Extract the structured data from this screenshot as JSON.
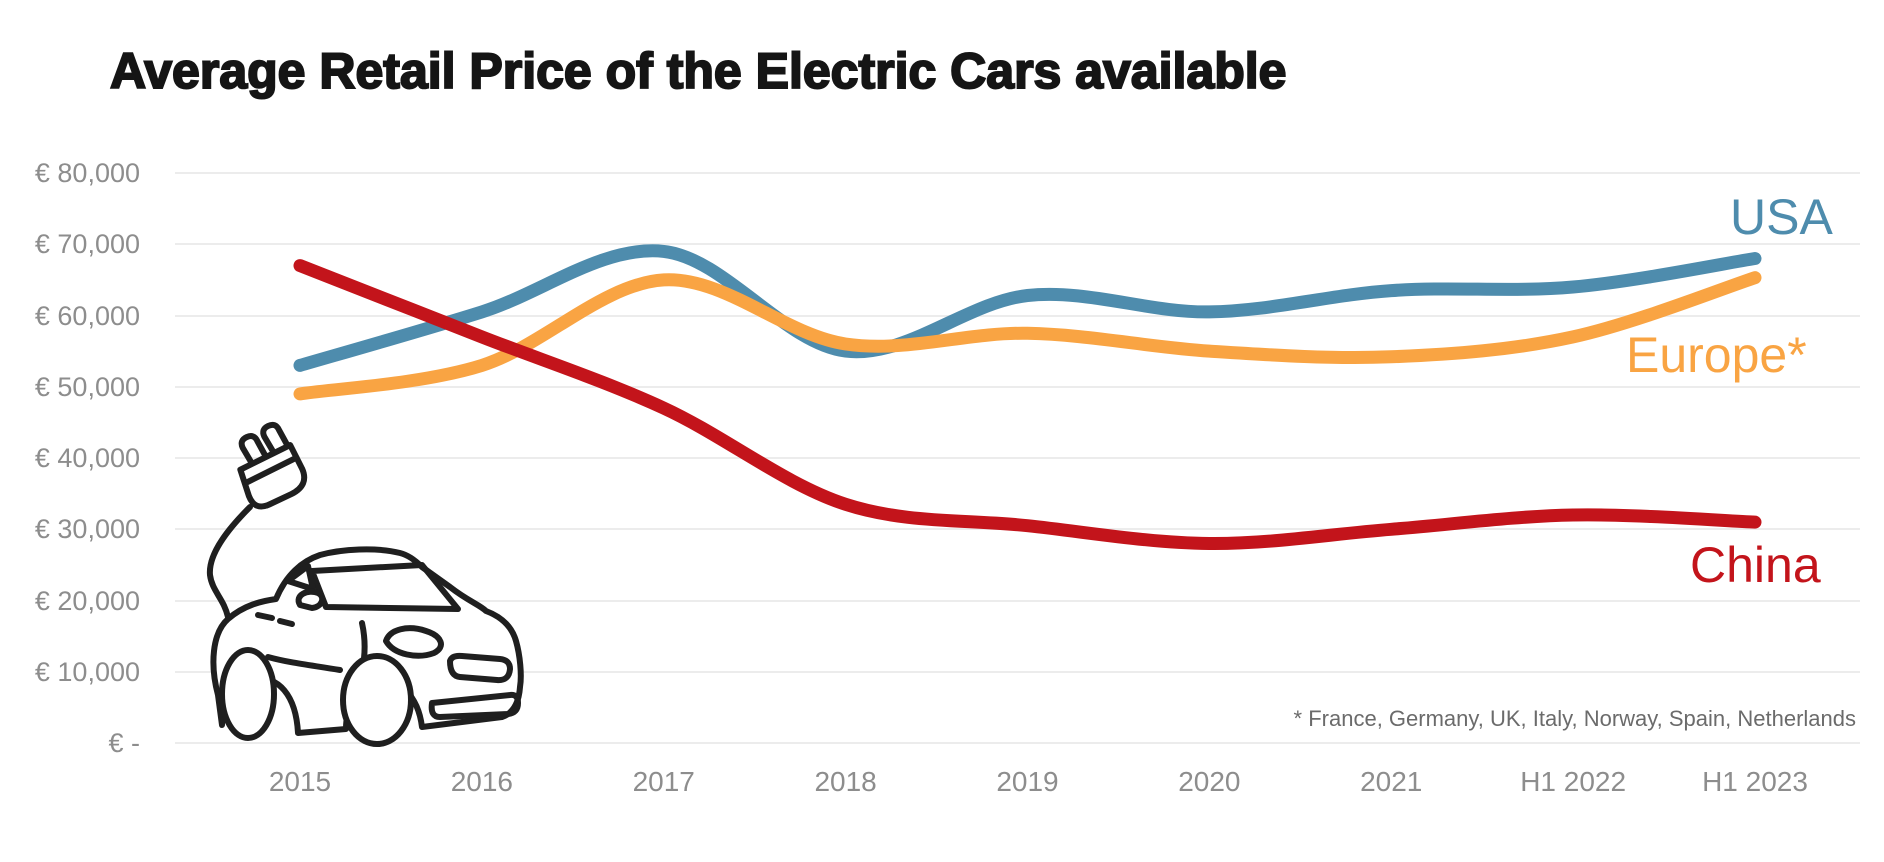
{
  "title": "Average Retail Price of the Electric Cars available",
  "footnote": "* France, Germany, UK, Italy, Norway, Spain, Netherlands",
  "colors": {
    "usa_line": "#4e8cad",
    "europe_line": "#f9a443",
    "china_line": "#c3141b",
    "gridline": "#ececec",
    "axis_text": "#8d8d8d",
    "footnote_text": "#6b6b6b",
    "title_text": "#151515",
    "car_outline": "#1f1f1f"
  },
  "y_axis": {
    "tick_labels": [
      "€ 80,000",
      "€ 70,000",
      "€ 60,000",
      "€ 50,000",
      "€ 40,000",
      "€ 30,000",
      "€ 20,000",
      "€ 10,000",
      "€ -"
    ],
    "max": 80000,
    "step": 10000
  },
  "chart_data": {
    "type": "line",
    "title": "Average Retail Price of the Electric Cars available",
    "categories": [
      "2015",
      "2016",
      "2017",
      "2018",
      "2019",
      "2020",
      "2021",
      "H1 2022",
      "H1 2023"
    ],
    "series": [
      {
        "name": "USA",
        "color": "#4e8cad",
        "values": [
          53000,
          60500,
          69000,
          55000,
          62800,
          60500,
          63500,
          64000,
          68000
        ]
      },
      {
        "name": "Europe*",
        "color": "#f9a443",
        "values": [
          49000,
          53000,
          65000,
          56000,
          57500,
          55000,
          54200,
          57000,
          65300
        ]
      },
      {
        "name": "China",
        "color": "#c3141b",
        "values": [
          67000,
          57000,
          47000,
          33500,
          30500,
          28000,
          30000,
          32000,
          31000
        ]
      }
    ],
    "ylabel": "",
    "xlabel": "",
    "ylim": [
      0,
      80000
    ],
    "grid": "horizontal",
    "legend_position": "line-end-labels",
    "footnote": "* France, Germany, UK, Italy, Norway, Spain, Netherlands"
  }
}
